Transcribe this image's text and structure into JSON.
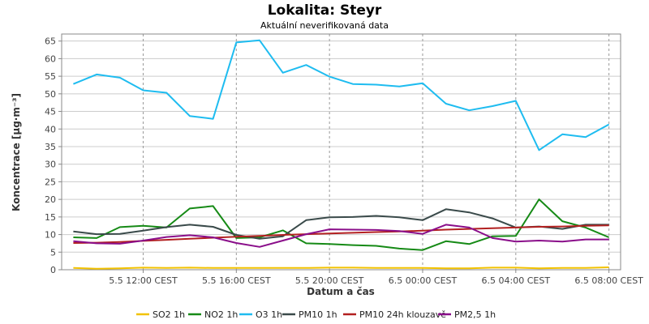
{
  "chart_data": {
    "type": "line",
    "title": "Lokalita: Steyr",
    "subtitle": "Aktuální neverifikovaná data",
    "xlabel": "Datum a čas",
    "ylabel": "Koncentrace [µg·m⁻³]",
    "ylim": [
      0,
      67
    ],
    "yticks": [
      0,
      5,
      10,
      15,
      20,
      25,
      30,
      35,
      40,
      45,
      50,
      55,
      60,
      65
    ],
    "x_hours": [
      9,
      10,
      11,
      12,
      13,
      14,
      15,
      16,
      17,
      18,
      19,
      20,
      21,
      22,
      23,
      24,
      25,
      26,
      27,
      28,
      29,
      30,
      31,
      32
    ],
    "xlim_hours": [
      8.5,
      32.5
    ],
    "xticks": [
      {
        "hour": 12,
        "label": "5.5 12:00 CEST"
      },
      {
        "hour": 16,
        "label": "5.5 16:00 CEST"
      },
      {
        "hour": 20,
        "label": "5.5 20:00 CEST"
      },
      {
        "hour": 24,
        "label": "6.5 00:00 CEST"
      },
      {
        "hour": 28,
        "label": "6.5 04:00 CEST"
      },
      {
        "hour": 32,
        "label": "6.5 08:00 CEST"
      }
    ],
    "grid": true,
    "legend": "bottom",
    "series": [
      {
        "name": "SO2 1h",
        "color": "#f2c200",
        "values": [
          0.5,
          0.3,
          0.4,
          0.6,
          0.5,
          0.6,
          0.5,
          0.5,
          0.5,
          0.5,
          0.5,
          0.6,
          0.6,
          0.5,
          0.5,
          0.5,
          0.4,
          0.4,
          0.6,
          0.6,
          0.4,
          0.5,
          0.5,
          0.7
        ]
      },
      {
        "name": "NO2 1h",
        "color": "#168a16",
        "values": [
          9.2,
          9.0,
          12.1,
          12.5,
          12.0,
          17.4,
          18.1,
          9.0,
          9.2,
          11.2,
          7.5,
          7.3,
          7.0,
          6.8,
          6.0,
          5.6,
          8.1,
          7.3,
          9.5,
          9.6,
          20.0,
          13.8,
          12.0,
          9.2
        ]
      },
      {
        "name": "O3 1h",
        "color": "#1ebcf0",
        "values": [
          52.8,
          55.5,
          54.6,
          51.0,
          50.3,
          43.7,
          42.9,
          64.6,
          65.2,
          56.0,
          58.2,
          54.9,
          52.8,
          52.6,
          52.1,
          53.0,
          47.2,
          45.3,
          46.5,
          48.0,
          34.0,
          38.5,
          37.7,
          41.3
        ]
      },
      {
        "name": "PM10 1h",
        "color": "#3a4a4a",
        "values": [
          10.9,
          10.1,
          10.2,
          11.1,
          12.1,
          12.8,
          12.2,
          9.9,
          8.8,
          9.5,
          14.1,
          14.9,
          15.0,
          15.3,
          14.9,
          14.1,
          17.2,
          16.3,
          14.6,
          12.0,
          12.3,
          11.6,
          12.8,
          12.8
        ]
      },
      {
        "name": "PM10 24h klouzavě",
        "color": "#b22020",
        "values": [
          7.6,
          7.7,
          7.9,
          8.2,
          8.5,
          8.8,
          9.1,
          9.4,
          9.6,
          9.9,
          10.1,
          10.3,
          10.5,
          10.7,
          10.9,
          11.1,
          11.4,
          11.6,
          11.8,
          12.0,
          12.2,
          12.3,
          12.5,
          12.6
        ]
      },
      {
        "name": "PM2,5 1h",
        "color": "#8a0e8a",
        "values": [
          8.1,
          7.5,
          7.4,
          8.3,
          9.3,
          9.8,
          9.2,
          7.6,
          6.5,
          8.3,
          10.1,
          11.5,
          11.4,
          11.3,
          11.0,
          10.2,
          12.8,
          12.0,
          9.0,
          8.0,
          8.3,
          8.0,
          8.6,
          8.6
        ]
      }
    ]
  }
}
